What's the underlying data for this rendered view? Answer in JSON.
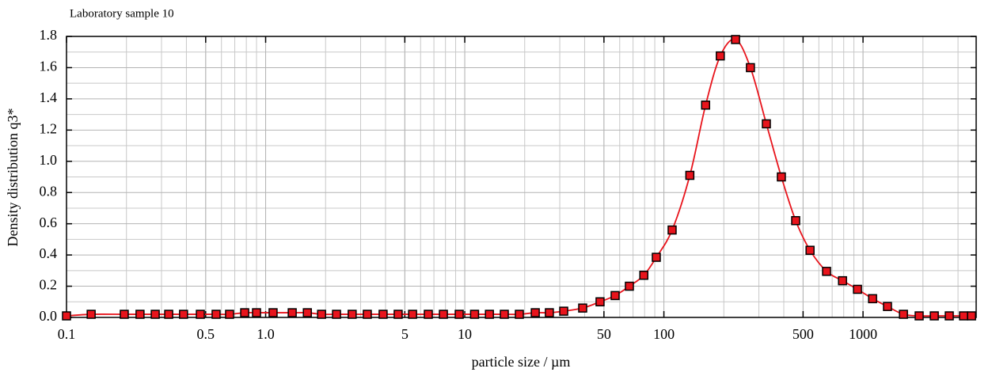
{
  "chart_data": {
    "type": "scatter",
    "title": "Laboratory sample 10",
    "x_label": "particle size / µm",
    "y_label": "Density distribution q3*",
    "xscale": "log",
    "xlim": [
      0.1,
      3700
    ],
    "ylim": [
      0,
      1.8
    ],
    "xticks": [
      0.1,
      0.5,
      {
        "value": 1,
        "label": "1.0"
      },
      5,
      10,
      50,
      100,
      500,
      1000
    ],
    "yticks": [
      {
        "value": 0,
        "label": "0.0"
      },
      0.2,
      0.4,
      0.6,
      0.8,
      {
        "value": 1,
        "label": "1.0"
      },
      1.2,
      1.4,
      1.6,
      1.8
    ],
    "grid": true,
    "minor_grid": true,
    "line": true,
    "color": "#e8141c",
    "marker_edge_color": "#000000",
    "x": [
      0.1,
      0.133,
      0.195,
      0.234,
      0.279,
      0.326,
      0.387,
      0.47,
      0.564,
      0.659,
      0.785,
      0.9,
      1.09,
      1.36,
      1.62,
      1.91,
      2.27,
      2.72,
      3.24,
      3.89,
      4.63,
      5.47,
      6.56,
      7.81,
      9.38,
      11.2,
      13.3,
      15.8,
      18.8,
      22.6,
      26.6,
      31.4,
      39.1,
      47.8,
      56.9,
      67.1,
      79.3,
      91.6,
      110,
      135,
      162,
      192,
      229,
      272,
      327,
      389,
      459,
      542,
      656,
      789,
      938,
      1117,
      1327,
      1596,
      1914,
      2280,
      2711,
      3199,
      3508
    ],
    "values": [
      0.01,
      0.02,
      0.02,
      0.02,
      0.02,
      0.02,
      0.02,
      0.02,
      0.02,
      0.02,
      0.03,
      0.03,
      0.03,
      0.03,
      0.03,
      0.02,
      0.02,
      0.02,
      0.02,
      0.02,
      0.02,
      0.02,
      0.02,
      0.02,
      0.02,
      0.02,
      0.02,
      0.02,
      0.02,
      0.03,
      0.03,
      0.04,
      0.06,
      0.1,
      0.14,
      0.2,
      0.27,
      0.385,
      0.56,
      0.91,
      1.36,
      1.675,
      1.78,
      1.6,
      1.24,
      0.9,
      0.62,
      0.43,
      0.295,
      0.235,
      0.18,
      0.12,
      0.07,
      0.02,
      0.01,
      0.01,
      0.01,
      0.01,
      0.01
    ]
  }
}
